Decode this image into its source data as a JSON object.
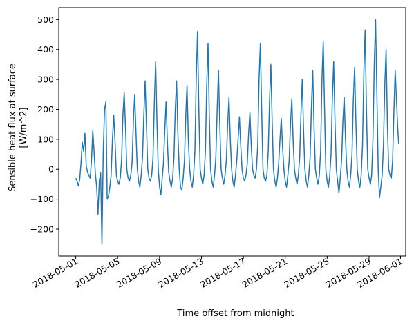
{
  "chart_data": {
    "type": "line",
    "title": "",
    "xlabel": "Time offset from midnight",
    "ylabel_line1": "Sensible heat flux at surface",
    "ylabel_line2": "[W/m^2]",
    "x_range": [
      "2018-04-29T09:00",
      "2018-06-01T12:00"
    ],
    "ylim": [
      -290,
      540
    ],
    "x_ticks": [
      "2018-05-01",
      "2018-05-05",
      "2018-05-09",
      "2018-05-13",
      "2018-05-17",
      "2018-05-21",
      "2018-05-25",
      "2018-05-29",
      "2018-06-01"
    ],
    "y_ticks": [
      -200,
      -100,
      0,
      100,
      200,
      300,
      400,
      500
    ],
    "series": [
      {
        "color": "#1f77b4",
        "points": [
          [
            "2018-05-01T00:00",
            -30
          ],
          [
            "2018-05-01T03:00",
            -40
          ],
          [
            "2018-05-01T06:00",
            -55
          ],
          [
            "2018-05-01T09:00",
            -35
          ],
          [
            "2018-05-01T12:00",
            20
          ],
          [
            "2018-05-01T15:00",
            90
          ],
          [
            "2018-05-01T18:00",
            60
          ],
          [
            "2018-05-01T21:00",
            120
          ],
          [
            "2018-05-02T00:00",
            10
          ],
          [
            "2018-05-02T03:00",
            -10
          ],
          [
            "2018-05-02T06:00",
            -20
          ],
          [
            "2018-05-02T09:00",
            -30
          ],
          [
            "2018-05-02T12:00",
            30
          ],
          [
            "2018-05-02T15:00",
            130
          ],
          [
            "2018-05-02T18:00",
            60
          ],
          [
            "2018-05-02T21:00",
            -15
          ],
          [
            "2018-05-03T00:00",
            -60
          ],
          [
            "2018-05-03T03:00",
            -150
          ],
          [
            "2018-05-03T06:00",
            -40
          ],
          [
            "2018-05-03T09:00",
            -10
          ],
          [
            "2018-05-03T12:00",
            -250
          ],
          [
            "2018-05-03T15:00",
            60
          ],
          [
            "2018-05-03T18:00",
            200
          ],
          [
            "2018-05-03T21:00",
            225
          ],
          [
            "2018-05-04T00:00",
            -100
          ],
          [
            "2018-05-04T03:00",
            -90
          ],
          [
            "2018-05-04T06:00",
            -60
          ],
          [
            "2018-05-04T09:00",
            -20
          ],
          [
            "2018-05-04T12:00",
            100
          ],
          [
            "2018-05-04T15:00",
            180
          ],
          [
            "2018-05-04T18:00",
            90
          ],
          [
            "2018-05-04T21:00",
            -20
          ],
          [
            "2018-05-05T00:00",
            -40
          ],
          [
            "2018-05-05T03:00",
            -50
          ],
          [
            "2018-05-05T06:00",
            -30
          ],
          [
            "2018-05-05T09:00",
            30
          ],
          [
            "2018-05-05T12:00",
            180
          ],
          [
            "2018-05-05T15:00",
            255
          ],
          [
            "2018-05-05T18:00",
            140
          ],
          [
            "2018-05-05T21:00",
            0
          ],
          [
            "2018-05-06T00:00",
            -30
          ],
          [
            "2018-05-06T03:00",
            -40
          ],
          [
            "2018-05-06T06:00",
            -20
          ],
          [
            "2018-05-06T09:00",
            20
          ],
          [
            "2018-05-06T12:00",
            160
          ],
          [
            "2018-05-06T15:00",
            250
          ],
          [
            "2018-05-06T18:00",
            120
          ],
          [
            "2018-05-06T21:00",
            0
          ],
          [
            "2018-05-07T00:00",
            -40
          ],
          [
            "2018-05-07T03:00",
            -60
          ],
          [
            "2018-05-07T06:00",
            -20
          ],
          [
            "2018-05-07T09:00",
            40
          ],
          [
            "2018-05-07T12:00",
            180
          ],
          [
            "2018-05-07T15:00",
            295
          ],
          [
            "2018-05-07T18:00",
            150
          ],
          [
            "2018-05-07T21:00",
            0
          ],
          [
            "2018-05-08T00:00",
            -30
          ],
          [
            "2018-05-08T03:00",
            -40
          ],
          [
            "2018-05-08T06:00",
            -20
          ],
          [
            "2018-05-08T09:00",
            40
          ],
          [
            "2018-05-08T12:00",
            220
          ],
          [
            "2018-05-08T15:00",
            360
          ],
          [
            "2018-05-08T18:00",
            160
          ],
          [
            "2018-05-08T21:00",
            0
          ],
          [
            "2018-05-09T00:00",
            -60
          ],
          [
            "2018-05-09T03:00",
            -85
          ],
          [
            "2018-05-09T06:00",
            -30
          ],
          [
            "2018-05-09T09:00",
            20
          ],
          [
            "2018-05-09T12:00",
            130
          ],
          [
            "2018-05-09T15:00",
            225
          ],
          [
            "2018-05-09T18:00",
            90
          ],
          [
            "2018-05-09T21:00",
            -10
          ],
          [
            "2018-05-10T00:00",
            -40
          ],
          [
            "2018-05-10T03:00",
            -60
          ],
          [
            "2018-05-10T06:00",
            -30
          ],
          [
            "2018-05-10T09:00",
            40
          ],
          [
            "2018-05-10T12:00",
            200
          ],
          [
            "2018-05-10T15:00",
            295
          ],
          [
            "2018-05-10T18:00",
            120
          ],
          [
            "2018-05-10T21:00",
            0
          ],
          [
            "2018-05-11T00:00",
            -60
          ],
          [
            "2018-05-11T03:00",
            -70
          ],
          [
            "2018-05-11T06:00",
            -30
          ],
          [
            "2018-05-11T09:00",
            30
          ],
          [
            "2018-05-11T12:00",
            180
          ],
          [
            "2018-05-11T15:00",
            280
          ],
          [
            "2018-05-11T18:00",
            100
          ],
          [
            "2018-05-11T21:00",
            0
          ],
          [
            "2018-05-12T00:00",
            -40
          ],
          [
            "2018-05-12T03:00",
            -60
          ],
          [
            "2018-05-12T06:00",
            -20
          ],
          [
            "2018-05-12T09:00",
            60
          ],
          [
            "2018-05-12T12:00",
            300
          ],
          [
            "2018-05-12T15:00",
            460
          ],
          [
            "2018-05-12T18:00",
            200
          ],
          [
            "2018-05-12T21:00",
            0
          ],
          [
            "2018-05-13T00:00",
            -30
          ],
          [
            "2018-05-13T03:00",
            -50
          ],
          [
            "2018-05-13T06:00",
            -20
          ],
          [
            "2018-05-13T09:00",
            60
          ],
          [
            "2018-05-13T12:00",
            280
          ],
          [
            "2018-05-13T15:00",
            420
          ],
          [
            "2018-05-13T18:00",
            180
          ],
          [
            "2018-05-13T21:00",
            0
          ],
          [
            "2018-05-14T00:00",
            -40
          ],
          [
            "2018-05-14T03:00",
            -60
          ],
          [
            "2018-05-14T06:00",
            -20
          ],
          [
            "2018-05-14T09:00",
            40
          ],
          [
            "2018-05-14T12:00",
            200
          ],
          [
            "2018-05-14T15:00",
            330
          ],
          [
            "2018-05-14T18:00",
            150
          ],
          [
            "2018-05-14T21:00",
            0
          ],
          [
            "2018-05-15T00:00",
            -30
          ],
          [
            "2018-05-15T03:00",
            -50
          ],
          [
            "2018-05-15T06:00",
            -20
          ],
          [
            "2018-05-15T09:00",
            30
          ],
          [
            "2018-05-15T12:00",
            150
          ],
          [
            "2018-05-15T15:00",
            240
          ],
          [
            "2018-05-15T18:00",
            100
          ],
          [
            "2018-05-15T21:00",
            0
          ],
          [
            "2018-05-16T00:00",
            -40
          ],
          [
            "2018-05-16T03:00",
            -60
          ],
          [
            "2018-05-16T06:00",
            -20
          ],
          [
            "2018-05-16T09:00",
            30
          ],
          [
            "2018-05-16T12:00",
            100
          ],
          [
            "2018-05-16T15:00",
            175
          ],
          [
            "2018-05-16T18:00",
            80
          ],
          [
            "2018-05-16T21:00",
            0
          ],
          [
            "2018-05-17T00:00",
            -30
          ],
          [
            "2018-05-17T03:00",
            -40
          ],
          [
            "2018-05-17T06:00",
            -20
          ],
          [
            "2018-05-17T09:00",
            20
          ],
          [
            "2018-05-17T12:00",
            120
          ],
          [
            "2018-05-17T15:00",
            190
          ],
          [
            "2018-05-17T18:00",
            80
          ],
          [
            "2018-05-17T21:00",
            0
          ],
          [
            "2018-05-18T00:00",
            -20
          ],
          [
            "2018-05-18T03:00",
            -30
          ],
          [
            "2018-05-18T06:00",
            0
          ],
          [
            "2018-05-18T09:00",
            80
          ],
          [
            "2018-05-18T12:00",
            300
          ],
          [
            "2018-05-18T15:00",
            420
          ],
          [
            "2018-05-18T18:00",
            200
          ],
          [
            "2018-05-18T21:00",
            0
          ],
          [
            "2018-05-19T00:00",
            -30
          ],
          [
            "2018-05-19T03:00",
            -40
          ],
          [
            "2018-05-19T06:00",
            -20
          ],
          [
            "2018-05-19T09:00",
            60
          ],
          [
            "2018-05-19T12:00",
            230
          ],
          [
            "2018-05-19T15:00",
            350
          ],
          [
            "2018-05-19T18:00",
            160
          ],
          [
            "2018-05-19T21:00",
            0
          ],
          [
            "2018-05-20T00:00",
            -40
          ],
          [
            "2018-05-20T03:00",
            -60
          ],
          [
            "2018-05-20T06:00",
            -30
          ],
          [
            "2018-05-20T09:00",
            20
          ],
          [
            "2018-05-20T12:00",
            100
          ],
          [
            "2018-05-20T15:00",
            170
          ],
          [
            "2018-05-20T18:00",
            70
          ],
          [
            "2018-05-20T21:00",
            0
          ],
          [
            "2018-05-21T00:00",
            -40
          ],
          [
            "2018-05-21T03:00",
            -60
          ],
          [
            "2018-05-21T06:00",
            -20
          ],
          [
            "2018-05-21T09:00",
            30
          ],
          [
            "2018-05-21T12:00",
            150
          ],
          [
            "2018-05-21T15:00",
            235
          ],
          [
            "2018-05-21T18:00",
            100
          ],
          [
            "2018-05-21T21:00",
            0
          ],
          [
            "2018-05-22T00:00",
            -30
          ],
          [
            "2018-05-22T03:00",
            -50
          ],
          [
            "2018-05-22T06:00",
            -20
          ],
          [
            "2018-05-22T09:00",
            40
          ],
          [
            "2018-05-22T12:00",
            190
          ],
          [
            "2018-05-22T15:00",
            300
          ],
          [
            "2018-05-22T18:00",
            130
          ],
          [
            "2018-05-22T21:00",
            0
          ],
          [
            "2018-05-23T00:00",
            -40
          ],
          [
            "2018-05-23T03:00",
            -60
          ],
          [
            "2018-05-23T06:00",
            -20
          ],
          [
            "2018-05-23T09:00",
            40
          ],
          [
            "2018-05-23T12:00",
            210
          ],
          [
            "2018-05-23T15:00",
            330
          ],
          [
            "2018-05-23T18:00",
            140
          ],
          [
            "2018-05-23T21:00",
            0
          ],
          [
            "2018-05-24T00:00",
            -30
          ],
          [
            "2018-05-24T03:00",
            -50
          ],
          [
            "2018-05-24T06:00",
            -20
          ],
          [
            "2018-05-24T09:00",
            60
          ],
          [
            "2018-05-24T12:00",
            300
          ],
          [
            "2018-05-24T15:00",
            425
          ],
          [
            "2018-05-24T18:00",
            200
          ],
          [
            "2018-05-24T21:00",
            0
          ],
          [
            "2018-05-25T00:00",
            -40
          ],
          [
            "2018-05-25T03:00",
            -60
          ],
          [
            "2018-05-25T06:00",
            -20
          ],
          [
            "2018-05-25T09:00",
            50
          ],
          [
            "2018-05-25T12:00",
            240
          ],
          [
            "2018-05-25T15:00",
            360
          ],
          [
            "2018-05-25T18:00",
            160
          ],
          [
            "2018-05-25T21:00",
            0
          ],
          [
            "2018-05-26T00:00",
            -40
          ],
          [
            "2018-05-26T03:00",
            -80
          ],
          [
            "2018-05-26T06:00",
            -30
          ],
          [
            "2018-05-26T09:00",
            30
          ],
          [
            "2018-05-26T12:00",
            160
          ],
          [
            "2018-05-26T15:00",
            240
          ],
          [
            "2018-05-26T18:00",
            100
          ],
          [
            "2018-05-26T21:00",
            0
          ],
          [
            "2018-05-27T00:00",
            -40
          ],
          [
            "2018-05-27T03:00",
            -60
          ],
          [
            "2018-05-27T06:00",
            -20
          ],
          [
            "2018-05-27T09:00",
            50
          ],
          [
            "2018-05-27T12:00",
            230
          ],
          [
            "2018-05-27T15:00",
            340
          ],
          [
            "2018-05-27T18:00",
            150
          ],
          [
            "2018-05-27T21:00",
            0
          ],
          [
            "2018-05-28T00:00",
            -40
          ],
          [
            "2018-05-28T03:00",
            -60
          ],
          [
            "2018-05-28T06:00",
            -20
          ],
          [
            "2018-05-28T09:00",
            80
          ],
          [
            "2018-05-28T12:00",
            320
          ],
          [
            "2018-05-28T15:00",
            465
          ],
          [
            "2018-05-28T18:00",
            200
          ],
          [
            "2018-05-28T21:00",
            0
          ],
          [
            "2018-05-29T00:00",
            -30
          ],
          [
            "2018-05-29T03:00",
            -50
          ],
          [
            "2018-05-29T06:00",
            -20
          ],
          [
            "2018-05-29T09:00",
            100
          ],
          [
            "2018-05-29T12:00",
            350
          ],
          [
            "2018-05-29T15:00",
            500
          ],
          [
            "2018-05-29T18:00",
            250
          ],
          [
            "2018-05-29T21:00",
            0
          ],
          [
            "2018-05-30T00:00",
            -95
          ],
          [
            "2018-05-30T03:00",
            -60
          ],
          [
            "2018-05-30T06:00",
            -20
          ],
          [
            "2018-05-30T09:00",
            80
          ],
          [
            "2018-05-30T12:00",
            280
          ],
          [
            "2018-05-30T15:00",
            400
          ],
          [
            "2018-05-30T18:00",
            150
          ],
          [
            "2018-05-30T21:00",
            0
          ],
          [
            "2018-05-31T00:00",
            -20
          ],
          [
            "2018-05-31T03:00",
            -30
          ],
          [
            "2018-05-31T06:00",
            30
          ],
          [
            "2018-05-31T09:00",
            200
          ],
          [
            "2018-05-31T12:00",
            330
          ],
          [
            "2018-05-31T15:00",
            230
          ],
          [
            "2018-05-31T18:00",
            130
          ],
          [
            "2018-05-31T20:00",
            85
          ]
        ]
      }
    ]
  }
}
